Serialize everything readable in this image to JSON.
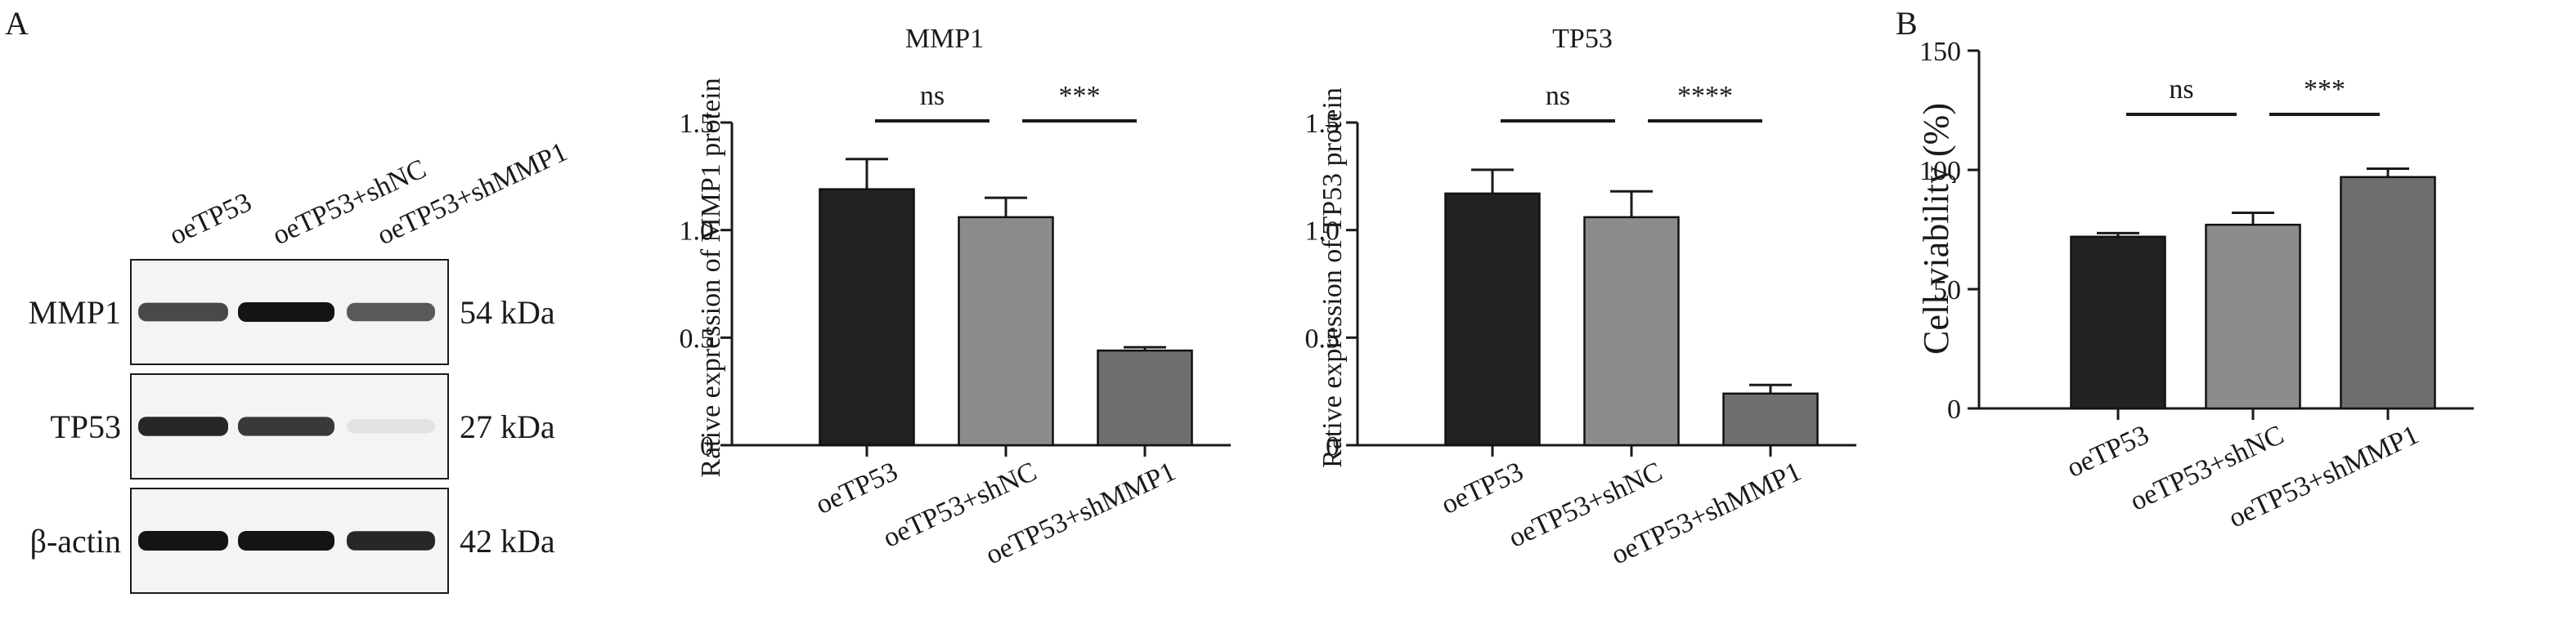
{
  "panel_labels": {
    "a": "A",
    "b": "B"
  },
  "blot": {
    "lanes": [
      "oeTP53",
      "oeTP53+shNC",
      "oeTP53+shMMP1"
    ],
    "rows": [
      {
        "protein": "MMP1",
        "size": "54 kDa",
        "intensity": [
          0.85,
          1.0,
          0.8
        ]
      },
      {
        "protein": "TP53",
        "size": "27 kDa",
        "intensity": [
          0.95,
          0.9,
          0.15
        ]
      },
      {
        "protein": "β-actin",
        "size": "42 kDa",
        "intensity": [
          1.0,
          1.0,
          0.95
        ]
      }
    ]
  },
  "colors": {
    "bar1": "#222222",
    "bar2": "#8c8c8c",
    "bar3": "#6e6e6e",
    "axis": "#1a1a1a"
  },
  "chart_data": [
    {
      "type": "bar",
      "title": "MMP1",
      "ylabel": "Rative expression of MMP1 protein",
      "xlabel": "",
      "categories": [
        "oeTP53",
        "oeTP53+shNC",
        "oeTP53+shMMP1"
      ],
      "values": [
        1.19,
        1.06,
        0.44
      ],
      "errors": [
        0.14,
        0.09,
        0.015
      ],
      "ylim": [
        0,
        1.5
      ],
      "yticks": [
        0,
        0.5,
        1.0,
        1.5
      ],
      "ytick_labels": [
        "0",
        "0.5",
        "1.0",
        "1.5"
      ],
      "significance": [
        {
          "from": 0,
          "to": 1,
          "label": "ns"
        },
        {
          "from": 1,
          "to": 2,
          "label": "***"
        }
      ]
    },
    {
      "type": "bar",
      "title": "TP53",
      "ylabel": "Rative expression of TP53 protein",
      "xlabel": "",
      "categories": [
        "oeTP53",
        "oeTP53+shNC",
        "oeTP53+shMMP1"
      ],
      "values": [
        1.17,
        1.06,
        0.24
      ],
      "errors": [
        0.11,
        0.12,
        0.04
      ],
      "ylim": [
        0,
        1.5
      ],
      "yticks": [
        0,
        0.5,
        1.0,
        1.5
      ],
      "ytick_labels": [
        "0",
        "0.5",
        "1.0",
        "1.5"
      ],
      "significance": [
        {
          "from": 0,
          "to": 1,
          "label": "ns"
        },
        {
          "from": 1,
          "to": 2,
          "label": "****"
        }
      ]
    },
    {
      "type": "bar",
      "title": "",
      "ylabel": "Cell viability (%)",
      "xlabel": "",
      "categories": [
        "oeTP53",
        "oeTP53+shNC",
        "oeTP53+shMMP1"
      ],
      "values": [
        72,
        77,
        97
      ],
      "errors": [
        1.5,
        5,
        3.5
      ],
      "ylim": [
        0,
        150
      ],
      "yticks": [
        0,
        50,
        100,
        150
      ],
      "ytick_labels": [
        "0",
        "50",
        "100",
        "150"
      ],
      "significance": [
        {
          "from": 0,
          "to": 1,
          "label": "ns"
        },
        {
          "from": 1,
          "to": 2,
          "label": "***"
        }
      ]
    }
  ]
}
